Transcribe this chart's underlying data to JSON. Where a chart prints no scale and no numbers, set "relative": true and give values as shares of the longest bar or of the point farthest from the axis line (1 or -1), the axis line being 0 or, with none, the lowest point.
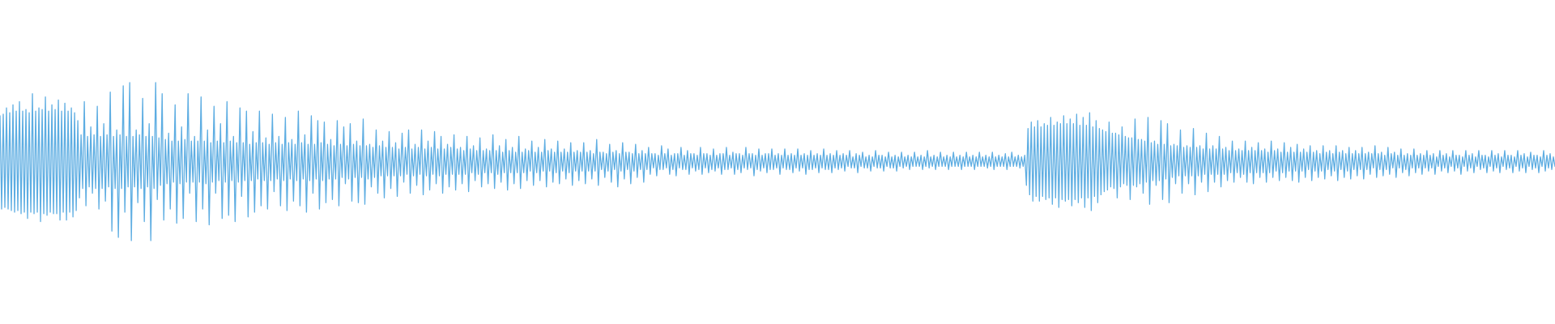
{
  "chart_data": {
    "type": "line",
    "relative": true,
    "tick_labels": false,
    "color": "#5dade2",
    "categories": [
      null,
      null,
      null,
      null,
      null,
      null,
      null,
      null,
      null,
      null,
      null,
      null,
      null,
      null,
      null,
      null,
      null,
      null,
      null,
      null,
      null,
      null,
      null,
      null,
      null,
      null,
      null,
      null,
      null,
      null,
      null,
      null,
      null,
      null,
      null,
      null,
      null,
      null,
      null,
      null,
      null,
      null,
      null,
      null,
      null,
      null,
      null,
      null,
      null,
      null,
      null,
      null,
      null,
      null,
      null,
      null,
      null,
      null,
      null,
      null,
      null,
      null,
      null,
      null,
      null,
      null,
      null,
      null,
      null,
      null,
      null,
      null,
      null,
      null,
      null,
      null,
      null,
      null,
      null,
      null,
      null,
      null,
      null,
      null,
      null,
      null,
      null,
      null,
      null,
      null,
      null,
      null,
      null,
      null,
      null,
      null,
      null,
      null,
      null,
      null,
      null,
      null,
      null,
      null,
      null,
      null,
      null,
      null,
      null,
      null,
      null,
      null,
      null,
      null,
      null,
      null,
      null,
      null,
      null,
      null,
      null,
      null,
      null,
      null,
      null,
      null,
      null,
      null,
      null,
      null,
      null,
      null,
      null,
      null,
      null,
      null,
      null,
      null,
      null,
      null,
      null,
      null,
      null,
      null,
      null,
      null,
      null,
      null,
      null,
      null,
      null,
      null,
      null,
      null,
      null,
      null,
      null,
      null,
      null,
      null,
      null,
      null,
      null,
      null,
      null,
      null,
      null,
      null,
      null,
      null,
      null,
      null,
      null,
      null,
      null,
      null,
      null,
      null,
      null,
      null,
      null,
      null,
      null,
      null,
      null,
      null,
      null,
      null,
      null,
      null,
      null,
      null,
      null,
      null,
      null,
      null,
      null,
      null,
      null,
      null,
      null,
      null,
      null,
      null,
      null,
      null,
      null,
      null,
      null,
      null,
      null,
      null,
      null,
      null,
      null,
      null,
      null,
      null,
      null,
      null,
      null,
      null,
      null,
      null,
      null,
      null,
      null,
      null,
      null,
      null,
      null,
      null,
      null,
      null,
      null,
      null,
      null,
      null,
      null,
      null,
      null,
      null,
      null,
      null,
      null,
      null,
      null,
      null,
      null,
      null,
      null,
      null,
      null,
      null,
      null,
      null,
      null,
      null,
      null,
      null,
      null,
      null,
      null,
      null,
      null,
      null,
      null,
      null,
      null,
      null,
      null,
      null,
      null,
      null,
      null,
      null,
      null,
      null,
      null,
      null,
      null,
      null,
      null,
      null,
      null,
      null,
      null,
      null,
      null,
      null,
      null,
      null,
      null,
      null,
      null,
      null,
      null,
      null,
      null,
      null,
      null,
      null,
      null,
      null,
      null,
      null,
      null,
      null,
      null,
      null,
      null,
      null,
      null,
      null,
      null,
      null,
      null,
      null,
      null,
      null,
      null,
      null,
      null,
      null,
      null,
      null,
      null,
      null,
      null,
      null,
      null,
      null,
      null,
      null,
      null,
      null,
      null,
      null,
      null,
      null,
      null,
      null,
      null,
      null,
      null,
      null,
      null,
      null,
      null,
      null,
      null,
      null,
      null,
      null,
      null,
      null,
      null,
      null,
      null,
      null,
      null,
      null,
      null,
      null,
      null,
      null,
      null,
      null,
      null,
      null,
      null,
      null,
      null,
      null,
      null,
      null,
      null,
      null,
      null,
      null,
      null,
      null,
      null,
      null,
      null,
      null,
      null,
      null,
      null,
      null,
      null,
      null,
      null,
      null,
      null,
      null,
      null,
      null,
      null,
      null,
      null,
      null,
      null,
      null,
      null,
      null,
      null,
      null,
      null,
      null,
      null,
      null,
      null,
      null,
      null,
      null,
      null,
      null,
      null,
      null,
      null,
      null,
      null,
      null,
      null,
      null,
      null,
      null,
      null,
      null,
      null,
      null,
      null,
      null,
      null,
      null,
      null,
      null,
      null,
      null,
      null,
      null,
      null,
      null,
      null,
      null,
      null,
      null,
      null,
      null,
      null,
      null,
      null,
      null,
      null,
      null,
      null,
      null,
      null,
      null,
      null,
      null,
      null,
      null,
      null,
      null,
      null,
      null,
      null,
      null,
      null,
      null,
      null,
      null,
      null,
      null,
      null,
      null,
      null,
      null,
      null,
      null,
      null,
      null,
      null,
      null,
      null,
      null,
      null,
      null,
      null,
      null,
      null,
      null,
      null,
      null,
      null,
      null,
      null,
      null,
      null,
      null,
      null,
      null,
      null,
      null,
      null,
      null,
      null,
      null,
      null,
      null,
      null,
      null,
      null,
      null,
      null,
      null,
      null,
      null,
      null,
      null,
      null,
      null,
      null,
      null,
      null,
      null,
      null,
      null,
      null,
      null,
      null,
      null,
      null,
      null,
      null,
      null,
      null,
      null,
      null,
      null,
      null,
      null,
      null,
      null,
      null,
      null,
      null,
      null,
      null,
      null,
      null,
      null,
      null,
      null,
      null,
      null,
      null,
      null,
      null,
      null,
      null,
      null,
      null,
      null,
      null,
      null,
      null,
      null,
      null,
      null,
      null,
      null,
      null,
      null,
      null,
      null,
      null,
      null,
      null,
      null,
      null,
      null,
      null,
      null,
      null,
      null,
      null,
      null,
      null,
      null,
      null,
      null,
      null,
      null,
      null,
      null,
      null,
      null,
      null,
      null,
      null,
      null,
      null,
      null,
      null,
      null,
      null,
      null,
      null,
      null,
      null,
      null,
      null,
      null,
      null,
      null,
      null,
      null,
      null,
      null,
      null,
      null,
      null,
      null,
      null,
      null,
      null,
      null,
      null,
      null,
      null,
      null,
      null,
      null,
      null,
      null,
      null,
      null,
      null,
      null,
      null,
      null,
      null,
      null,
      null,
      null,
      null,
      null,
      null,
      null,
      null,
      null,
      null,
      null,
      null,
      null,
      null,
      null,
      null,
      null,
      null,
      null,
      null,
      null,
      null,
      null,
      null,
      null,
      null,
      null,
      null,
      null,
      null,
      null,
      null,
      null,
      null,
      null,
      null,
      null,
      null,
      null,
      null,
      null,
      null,
      null,
      null,
      null,
      null,
      null,
      null,
      null,
      null,
      null,
      null,
      null,
      null,
      null,
      null,
      null,
      null,
      null,
      null,
      null,
      null,
      null,
      null,
      null,
      null,
      null,
      null,
      null,
      null,
      null,
      null,
      null,
      null,
      null,
      null,
      null,
      null,
      null,
      null,
      null,
      null,
      null,
      null,
      null,
      null,
      null,
      null,
      null,
      null,
      null,
      null,
      null,
      null,
      null,
      null,
      null,
      null,
      null,
      null,
      null,
      null,
      null,
      null,
      null,
      null,
      null,
      null,
      null,
      null,
      null,
      null,
      null,
      null,
      null,
      null,
      null,
      null,
      null,
      null,
      null,
      null,
      null,
      null,
      null,
      null,
      null,
      null,
      null,
      null,
      null,
      null,
      null,
      null,
      null,
      null,
      null,
      null,
      null,
      null,
      null,
      null,
      null,
      null,
      null,
      null,
      null,
      null,
      null,
      null,
      null,
      null,
      null,
      null,
      null,
      null,
      null,
      null,
      null,
      null,
      null,
      null,
      null,
      null,
      null,
      null,
      null,
      null,
      null,
      null,
      null,
      null,
      null,
      null,
      null,
      null,
      null,
      null,
      null,
      null,
      null,
      null,
      null,
      null,
      null,
      null,
      null,
      null,
      null,
      null,
      null,
      null,
      null,
      null,
      null,
      null,
      null,
      null,
      null,
      null,
      null,
      null,
      null,
      null,
      null,
      null,
      null,
      null,
      null,
      null,
      null,
      null,
      null,
      null,
      null,
      null,
      null,
      null,
      null,
      null,
      null,
      null,
      null,
      null,
      null,
      null,
      null,
      null,
      null,
      null,
      null,
      null,
      null,
      null,
      null,
      null,
      null,
      null,
      null,
      null,
      null,
      null,
      null,
      null,
      null,
      null,
      null,
      null,
      null,
      null,
      null,
      null,
      null,
      null,
      null,
      null,
      null,
      null,
      null,
      null,
      null,
      null,
      null,
      null,
      null,
      null,
      null,
      null,
      null,
      null,
      null,
      null,
      null,
      null,
      null,
      null,
      null,
      null,
      null,
      null,
      null,
      null,
      null,
      null,
      null,
      null,
      null,
      null,
      null,
      null,
      null,
      null,
      null,
      null,
      null,
      null,
      null,
      null,
      null,
      null,
      null,
      null,
      null,
      null,
      null,
      null,
      null,
      null,
      null,
      null,
      null,
      null,
      null,
      null,
      null
    ],
    "values": [
      0.79,
      0.2,
      0.8,
      0.21,
      0.84,
      0.2,
      0.81,
      0.19,
      0.86,
      0.18,
      0.82,
      0.19,
      0.88,
      0.17,
      0.82,
      0.18,
      0.83,
      0.14,
      0.81,
      0.18,
      0.93,
      0.17,
      0.82,
      0.18,
      0.84,
      0.12,
      0.83,
      0.17,
      0.91,
      0.16,
      0.82,
      0.18,
      0.86,
      0.17,
      0.83,
      0.17,
      0.89,
      0.13,
      0.82,
      0.18,
      0.87,
      0.13,
      0.82,
      0.18,
      0.84,
      0.15,
      0.81,
      0.19,
      0.76,
      0.27,
      0.67,
      0.33,
      0.88,
      0.22,
      0.66,
      0.34,
      0.72,
      0.3,
      0.67,
      0.33,
      0.85,
      0.2,
      0.66,
      0.33,
      0.74,
      0.25,
      0.67,
      0.34,
      0.94,
      0.06,
      0.66,
      0.33,
      0.7,
      0.02,
      0.67,
      0.33,
      0.98,
      0.18,
      0.66,
      0.34,
      1,
      0,
      0.66,
      0.34,
      0.7,
      0.24,
      0.67,
      0.33,
      0.9,
      0.12,
      0.66,
      0.34,
      0.74,
      0,
      0.66,
      0.33,
      1,
      0.26,
      0.65,
      0.35,
      0.93,
      0.13,
      0.64,
      0.36,
      0.68,
      0.2,
      0.63,
      0.37,
      0.86,
      0.11,
      0.63,
      0.36,
      0.72,
      0.14,
      0.64,
      0.37,
      0.93,
      0.3,
      0.63,
      0.37,
      0.66,
      0.12,
      0.63,
      0.37,
      0.91,
      0.2,
      0.63,
      0.36,
      0.7,
      0.1,
      0.62,
      0.37,
      0.85,
      0.3,
      0.63,
      0.38,
      0.74,
      0.14,
      0.62,
      0.37,
      0.88,
      0.16,
      0.63,
      0.38,
      0.66,
      0.12,
      0.62,
      0.37,
      0.84,
      0.28,
      0.62,
      0.38,
      0.82,
      0.15,
      0.61,
      0.38,
      0.69,
      0.18,
      0.62,
      0.39,
      0.82,
      0.22,
      0.62,
      0.38,
      0.65,
      0.2,
      0.61,
      0.38,
      0.8,
      0.31,
      0.62,
      0.39,
      0.66,
      0.22,
      0.61,
      0.38,
      0.78,
      0.19,
      0.62,
      0.39,
      0.64,
      0.25,
      0.61,
      0.38,
      0.82,
      0.22,
      0.62,
      0.39,
      0.67,
      0.18,
      0.61,
      0.38,
      0.79,
      0.3,
      0.61,
      0.39,
      0.76,
      0.2,
      0.62,
      0.38,
      0.75,
      0.24,
      0.61,
      0.39,
      0.64,
      0.26,
      0.6,
      0.39,
      0.76,
      0.22,
      0.61,
      0.4,
      0.72,
      0.36,
      0.6,
      0.39,
      0.74,
      0.25,
      0.61,
      0.4,
      0.63,
      0.24,
      0.6,
      0.4,
      0.77,
      0.23,
      0.6,
      0.39,
      0.61,
      0.34,
      0.59,
      0.4,
      0.7,
      0.3,
      0.6,
      0.41,
      0.63,
      0.27,
      0.59,
      0.41,
      0.69,
      0.33,
      0.59,
      0.41,
      0.62,
      0.28,
      0.58,
      0.41,
      0.68,
      0.37,
      0.59,
      0.42,
      0.7,
      0.3,
      0.58,
      0.41,
      0.61,
      0.35,
      0.59,
      0.42,
      0.7,
      0.29,
      0.58,
      0.41,
      0.63,
      0.32,
      0.59,
      0.42,
      0.69,
      0.36,
      0.58,
      0.41,
      0.66,
      0.3,
      0.58,
      0.42,
      0.61,
      0.34,
      0.59,
      0.42,
      0.67,
      0.32,
      0.58,
      0.42,
      0.59,
      0.36,
      0.57,
      0.42,
      0.66,
      0.31,
      0.58,
      0.43,
      0.6,
      0.38,
      0.57,
      0.42,
      0.65,
      0.34,
      0.57,
      0.43,
      0.58,
      0.36,
      0.57,
      0.43,
      0.67,
      0.33,
      0.57,
      0.42,
      0.6,
      0.37,
      0.56,
      0.43,
      0.64,
      0.32,
      0.57,
      0.43,
      0.59,
      0.36,
      0.56,
      0.43,
      0.66,
      0.33,
      0.56,
      0.43,
      0.58,
      0.38,
      0.57,
      0.44,
      0.63,
      0.35,
      0.56,
      0.43,
      0.59,
      0.38,
      0.56,
      0.44,
      0.64,
      0.34,
      0.57,
      0.44,
      0.58,
      0.37,
      0.56,
      0.43,
      0.63,
      0.36,
      0.56,
      0.44,
      0.58,
      0.39,
      0.56,
      0.43,
      0.62,
      0.35,
      0.56,
      0.44,
      0.57,
      0.38,
      0.56,
      0.44,
      0.62,
      0.36,
      0.56,
      0.44,
      0.57,
      0.39,
      0.55,
      0.44,
      0.64,
      0.35,
      0.56,
      0.45,
      0.56,
      0.4,
      0.55,
      0.44,
      0.61,
      0.37,
      0.56,
      0.45,
      0.57,
      0.34,
      0.55,
      0.44,
      0.62,
      0.39,
      0.56,
      0.45,
      0.56,
      0.36,
      0.55,
      0.44,
      0.61,
      0.4,
      0.55,
      0.45,
      0.57,
      0.37,
      0.55,
      0.45,
      0.59,
      0.42,
      0.55,
      0.46,
      0.55,
      0.41,
      0.54,
      0.45,
      0.6,
      0.45,
      0.55,
      0.46,
      0.58,
      0.42,
      0.54,
      0.45,
      0.55,
      0.41,
      0.55,
      0.46,
      0.59,
      0.45,
      0.54,
      0.45,
      0.57,
      0.42,
      0.55,
      0.46,
      0.55,
      0.44,
      0.54,
      0.45,
      0.59,
      0.42,
      0.55,
      0.46,
      0.55,
      0.43,
      0.54,
      0.45,
      0.58,
      0.44,
      0.54,
      0.46,
      0.55,
      0.42,
      0.55,
      0.45,
      0.59,
      0.45,
      0.54,
      0.46,
      0.56,
      0.42,
      0.55,
      0.45,
      0.55,
      0.43,
      0.54,
      0.46,
      0.59,
      0.45,
      0.55,
      0.46,
      0.55,
      0.41,
      0.54,
      0.45,
      0.58,
      0.44,
      0.54,
      0.46,
      0.55,
      0.43,
      0.55,
      0.45,
      0.58,
      0.45,
      0.54,
      0.46,
      0.55,
      0.42,
      0.54,
      0.46,
      0.58,
      0.45,
      0.54,
      0.45,
      0.55,
      0.43,
      0.54,
      0.46,
      0.58,
      0.44,
      0.54,
      0.46,
      0.55,
      0.42,
      0.54,
      0.45,
      0.57,
      0.45,
      0.54,
      0.46,
      0.55,
      0.43,
      0.54,
      0.46,
      0.58,
      0.45,
      0.54,
      0.45,
      0.55,
      0.43,
      0.54,
      0.46,
      0.57,
      0.45,
      0.54,
      0.46,
      0.55,
      0.44,
      0.54,
      0.47,
      0.57,
      0.46,
      0.53,
      0.46,
      0.55,
      0.43,
      0.54,
      0.47,
      0.56,
      0.46,
      0.53,
      0.46,
      0.54,
      0.44,
      0.53,
      0.47,
      0.57,
      0.46,
      0.54,
      0.46,
      0.54,
      0.44,
      0.53,
      0.47,
      0.56,
      0.46,
      0.53,
      0.46,
      0.54,
      0.44,
      0.53,
      0.47,
      0.56,
      0.46,
      0.53,
      0.47,
      0.54,
      0.45,
      0.53,
      0.47,
      0.56,
      0.47,
      0.53,
      0.47,
      0.54,
      0.45,
      0.53,
      0.47,
      0.57,
      0.46,
      0.53,
      0.47,
      0.54,
      0.45,
      0.53,
      0.47,
      0.56,
      0.47,
      0.53,
      0.47,
      0.54,
      0.45,
      0.53,
      0.47,
      0.56,
      0.47,
      0.53,
      0.47,
      0.54,
      0.45,
      0.53,
      0.47,
      0.56,
      0.47,
      0.53,
      0.47,
      0.54,
      0.45,
      0.53,
      0.47,
      0.56,
      0.47,
      0.53,
      0.47,
      0.54,
      0.46,
      0.53,
      0.47,
      0.56,
      0.45,
      0.53,
      0.47,
      0.54,
      0.47,
      0.53,
      0.47,
      0.55,
      0.45,
      0.53,
      0.47,
      0.56,
      0.47,
      0.53,
      0.47,
      0.54,
      0.46,
      0.53,
      0.47,
      0.54,
      0.35,
      0.71,
      0.29,
      0.75,
      0.25,
      0.72,
      0.28,
      0.76,
      0.25,
      0.72,
      0.28,
      0.74,
      0.26,
      0.73,
      0.27,
      0.78,
      0.23,
      0.73,
      0.27,
      0.75,
      0.21,
      0.74,
      0.26,
      0.79,
      0.25,
      0.74,
      0.26,
      0.77,
      0.22,
      0.74,
      0.26,
      0.8,
      0.24,
      0.73,
      0.27,
      0.78,
      0.21,
      0.73,
      0.27,
      0.81,
      0.19,
      0.72,
      0.28,
      0.76,
      0.24,
      0.71,
      0.29,
      0.7,
      0.31,
      0.69,
      0.32,
      0.75,
      0.34,
      0.68,
      0.33,
      0.68,
      0.27,
      0.67,
      0.34,
      0.72,
      0.36,
      0.66,
      0.35,
      0.65,
      0.26,
      0.65,
      0.35,
      0.77,
      0.34,
      0.64,
      0.36,
      0.64,
      0.3,
      0.63,
      0.37,
      0.78,
      0.23,
      0.62,
      0.38,
      0.63,
      0.35,
      0.61,
      0.38,
      0.76,
      0.26,
      0.61,
      0.39,
      0.74,
      0.24,
      0.6,
      0.4,
      0.61,
      0.36,
      0.6,
      0.41,
      0.7,
      0.3,
      0.59,
      0.41,
      0.6,
      0.36,
      0.59,
      0.41,
      0.71,
      0.29,
      0.59,
      0.41,
      0.6,
      0.37,
      0.58,
      0.42,
      0.68,
      0.31,
      0.58,
      0.42,
      0.6,
      0.37,
      0.58,
      0.42,
      0.66,
      0.34,
      0.58,
      0.42,
      0.59,
      0.38,
      0.57,
      0.43,
      0.63,
      0.37,
      0.57,
      0.43,
      0.58,
      0.4,
      0.57,
      0.42,
      0.63,
      0.37,
      0.57,
      0.43,
      0.59,
      0.36,
      0.57,
      0.43,
      0.62,
      0.4,
      0.57,
      0.43,
      0.58,
      0.37,
      0.56,
      0.43,
      0.63,
      0.4,
      0.57,
      0.44,
      0.58,
      0.38,
      0.56,
      0.43,
      0.62,
      0.4,
      0.56,
      0.44,
      0.59,
      0.38,
      0.56,
      0.44,
      0.61,
      0.37,
      0.56,
      0.44,
      0.58,
      0.4,
      0.56,
      0.45,
      0.6,
      0.38,
      0.56,
      0.44,
      0.57,
      0.4,
      0.55,
      0.44,
      0.6,
      0.39,
      0.56,
      0.45,
      0.57,
      0.41,
      0.55,
      0.44,
      0.6,
      0.38,
      0.56,
      0.45,
      0.57,
      0.4,
      0.55,
      0.44,
      0.59,
      0.39,
      0.55,
      0.45,
      0.57,
      0.41,
      0.55,
      0.45,
      0.59,
      0.39,
      0.55,
      0.45,
      0.56,
      0.42,
      0.55,
      0.46,
      0.6,
      0.4,
      0.55,
      0.45,
      0.56,
      0.41,
      0.54,
      0.45,
      0.59,
      0.42,
      0.55,
      0.46,
      0.56,
      0.4,
      0.54,
      0.46,
      0.58,
      0.43,
      0.54,
      0.45,
      0.55,
      0.41,
      0.54,
      0.46,
      0.58,
      0.43,
      0.54,
      0.46,
      0.55,
      0.42,
      0.54,
      0.46,
      0.57,
      0.44,
      0.54,
      0.46,
      0.55,
      0.42,
      0.53,
      0.47,
      0.57,
      0.44,
      0.54,
      0.46,
      0.55,
      0.43,
      0.53,
      0.47,
      0.57,
      0.44,
      0.54,
      0.46,
      0.54,
      0.42,
      0.53,
      0.47,
      0.57,
      0.44,
      0.54,
      0.46,
      0.55,
      0.43,
      0.53,
      0.47,
      0.57,
      0.45,
      0.54,
      0.46,
      0.54,
      0.43,
      0.53,
      0.47,
      0.57,
      0.44,
      0.54,
      0.46,
      0.55,
      0.43,
      0.53,
      0.47,
      0.57,
      0.45,
      0.54,
      0.46,
      0.54,
      0.43,
      0.53,
      0.47,
      0.57,
      0.44,
      0.54,
      0.46,
      0.55,
      0.43,
      0.53,
      0.47,
      0.56,
      0.45,
      0.54,
      0.46,
      0.54,
      0.43,
      0.53,
      0.47,
      0.57,
      0.44,
      0.54,
      0.46,
      0.55,
      0.45,
      0.53,
      0.47
    ]
  }
}
